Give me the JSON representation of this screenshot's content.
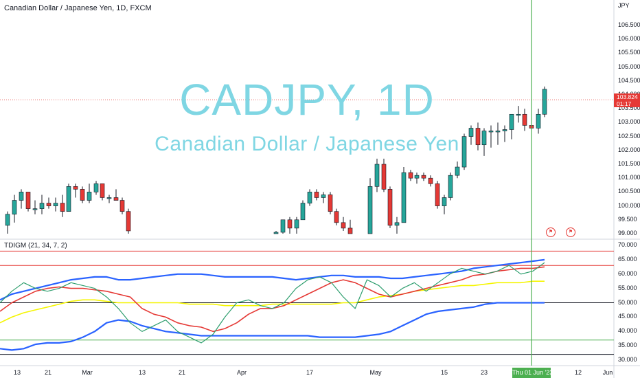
{
  "header": {
    "symbol_title": "Canadian Dollar / Japanese Yen, 1D, FXCM",
    "indicator_title": "TDIGM (21, 34, 7, 2)"
  },
  "watermark": {
    "ticker": "CADJPY, 1D",
    "name": "Canadian Dollar / Japanese Yen"
  },
  "price_scale": {
    "currency": "JPY",
    "labels": [
      "106.500",
      "106.000",
      "105.500",
      "105.000",
      "104.500",
      "104.000",
      "103.500",
      "103.000",
      "102.500",
      "102.000",
      "101.500",
      "101.000",
      "100.500",
      "100.000",
      "99.500",
      "99.000"
    ],
    "last_price": "103.824",
    "countdown": "01:17"
  },
  "indicator_scale": {
    "labels": [
      "70.000",
      "65.000",
      "60.000",
      "55.000",
      "50.000",
      "45.000",
      "40.000",
      "35.000",
      "30.000"
    ]
  },
  "time_axis": {
    "labels": [
      "13",
      "21",
      "Mar",
      "13",
      "21",
      "Apr",
      "17",
      "May",
      "15",
      "23",
      "12",
      "Jun"
    ],
    "crosshair_date": "Thu 01 Jun '23"
  },
  "events": [
    {
      "icon": "event-flag-icon"
    },
    {
      "icon": "event-flag-icon"
    }
  ],
  "colors": {
    "bull": "#26a69a",
    "bear": "#e53935",
    "crosshair": "#4caf50",
    "watermark": "#7fd6e3",
    "upper_band": "#2962ff",
    "signal": "#e53935",
    "rsi_line": "#2e9e6e",
    "middle_band": "#f5f500"
  },
  "chart_data": [
    {
      "type": "candlestick",
      "title": "Canadian Dollar / Japanese Yen, 1D, FXCM",
      "ylim": [
        99.0,
        106.7
      ],
      "candles": [
        {
          "x": "Feb 09",
          "o": 99.3,
          "h": 99.8,
          "l": 99.0,
          "c": 99.7
        },
        {
          "x": "Feb 10",
          "o": 99.7,
          "h": 100.4,
          "l": 99.4,
          "c": 100.2
        },
        {
          "x": "Feb 13",
          "o": 100.2,
          "h": 100.6,
          "l": 99.9,
          "c": 100.5
        },
        {
          "x": "Feb 14",
          "o": 100.5,
          "h": 100.5,
          "l": 99.8,
          "c": 99.9
        },
        {
          "x": "Feb 15",
          "o": 99.9,
          "h": 100.2,
          "l": 99.7,
          "c": 99.9
        },
        {
          "x": "Feb 16",
          "o": 99.9,
          "h": 100.4,
          "l": 99.7,
          "c": 100.1
        },
        {
          "x": "Feb 17",
          "o": 100.1,
          "h": 100.3,
          "l": 99.9,
          "c": 100.0
        },
        {
          "x": "Feb 20",
          "o": 100.0,
          "h": 100.3,
          "l": 99.8,
          "c": 100.1
        },
        {
          "x": "Feb 21",
          "o": 100.1,
          "h": 100.4,
          "l": 99.6,
          "c": 99.8
        },
        {
          "x": "Feb 22",
          "o": 99.8,
          "h": 100.8,
          "l": 99.8,
          "c": 100.7
        },
        {
          "x": "Feb 23",
          "o": 100.7,
          "h": 100.8,
          "l": 100.3,
          "c": 100.6
        },
        {
          "x": "Feb 24",
          "o": 100.6,
          "h": 100.7,
          "l": 100.1,
          "c": 100.2
        },
        {
          "x": "Feb 27",
          "o": 100.2,
          "h": 100.8,
          "l": 100.1,
          "c": 100.5
        },
        {
          "x": "Feb 28",
          "o": 100.5,
          "h": 100.9,
          "l": 100.4,
          "c": 100.8
        },
        {
          "x": "Mar 01",
          "o": 100.8,
          "h": 100.8,
          "l": 100.2,
          "c": 100.3
        },
        {
          "x": "Mar 02",
          "o": 100.3,
          "h": 100.4,
          "l": 100.1,
          "c": 100.3
        },
        {
          "x": "Mar 03",
          "o": 100.3,
          "h": 100.6,
          "l": 100.2,
          "c": 100.2
        },
        {
          "x": "Mar 06",
          "o": 100.2,
          "h": 100.3,
          "l": 99.7,
          "c": 99.8
        },
        {
          "x": "Mar 07",
          "o": 99.8,
          "h": 99.9,
          "l": 99.0,
          "c": 99.1
        },
        {
          "x": "Mar 29",
          "o": 99.0,
          "h": 99.1,
          "l": 99.0,
          "c": 99.05
        },
        {
          "x": "Mar 30",
          "o": 99.05,
          "h": 99.5,
          "l": 99.0,
          "c": 99.5
        },
        {
          "x": "Mar 31",
          "o": 99.5,
          "h": 99.6,
          "l": 99.0,
          "c": 99.2
        },
        {
          "x": "Apr 03",
          "o": 99.2,
          "h": 99.6,
          "l": 99.0,
          "c": 99.5
        },
        {
          "x": "Apr 04",
          "o": 99.5,
          "h": 100.2,
          "l": 99.5,
          "c": 100.1
        },
        {
          "x": "Apr 05",
          "o": 100.1,
          "h": 100.6,
          "l": 100.0,
          "c": 100.5
        },
        {
          "x": "Apr 06",
          "o": 100.5,
          "h": 100.6,
          "l": 100.2,
          "c": 100.3
        },
        {
          "x": "Apr 07",
          "o": 100.3,
          "h": 100.5,
          "l": 100.1,
          "c": 100.4
        },
        {
          "x": "Apr 10",
          "o": 100.4,
          "h": 100.5,
          "l": 99.7,
          "c": 99.8
        },
        {
          "x": "Apr 11",
          "o": 99.8,
          "h": 99.9,
          "l": 99.3,
          "c": 99.4
        },
        {
          "x": "Apr 12",
          "o": 99.4,
          "h": 99.6,
          "l": 99.1,
          "c": 99.2
        },
        {
          "x": "Apr 13",
          "o": 99.2,
          "h": 99.5,
          "l": 99.0,
          "c": 99.0
        },
        {
          "x": "Apr 27",
          "o": 99.0,
          "h": 101.0,
          "l": 99.0,
          "c": 100.7
        },
        {
          "x": "Apr 28",
          "o": 100.7,
          "h": 101.7,
          "l": 100.5,
          "c": 101.5
        },
        {
          "x": "May 01",
          "o": 101.5,
          "h": 101.7,
          "l": 100.5,
          "c": 100.6
        },
        {
          "x": "May 02",
          "o": 100.6,
          "h": 100.7,
          "l": 99.2,
          "c": 99.3
        },
        {
          "x": "May 03",
          "o": 99.3,
          "h": 99.6,
          "l": 99.0,
          "c": 99.4
        },
        {
          "x": "May 04",
          "o": 99.4,
          "h": 101.4,
          "l": 99.4,
          "c": 101.2
        },
        {
          "x": "May 05",
          "o": 101.2,
          "h": 101.3,
          "l": 100.9,
          "c": 101.0
        },
        {
          "x": "May 08",
          "o": 101.0,
          "h": 101.2,
          "l": 100.8,
          "c": 101.1
        },
        {
          "x": "May 09",
          "o": 101.1,
          "h": 101.2,
          "l": 100.9,
          "c": 101.0
        },
        {
          "x": "May 10",
          "o": 101.0,
          "h": 101.1,
          "l": 100.7,
          "c": 100.8
        },
        {
          "x": "May 11",
          "o": 100.8,
          "h": 100.9,
          "l": 99.9,
          "c": 100.0
        },
        {
          "x": "May 12",
          "o": 100.0,
          "h": 100.4,
          "l": 99.7,
          "c": 100.3
        },
        {
          "x": "May 15",
          "o": 100.3,
          "h": 101.2,
          "l": 100.2,
          "c": 101.1
        },
        {
          "x": "May 16",
          "o": 101.1,
          "h": 101.6,
          "l": 101.0,
          "c": 101.4
        },
        {
          "x": "May 17",
          "o": 101.4,
          "h": 102.6,
          "l": 101.3,
          "c": 102.5
        },
        {
          "x": "May 18",
          "o": 102.5,
          "h": 102.9,
          "l": 102.2,
          "c": 102.8
        },
        {
          "x": "May 19",
          "o": 102.8,
          "h": 103.0,
          "l": 102.0,
          "c": 102.2
        },
        {
          "x": "May 22",
          "o": 102.2,
          "h": 102.8,
          "l": 101.8,
          "c": 102.7
        },
        {
          "x": "May 23",
          "o": 102.7,
          "h": 102.9,
          "l": 102.1,
          "c": 102.7
        },
        {
          "x": "May 24",
          "o": 102.7,
          "h": 103.0,
          "l": 102.2,
          "c": 102.7
        },
        {
          "x": "May 25",
          "o": 102.7,
          "h": 102.9,
          "l": 102.3,
          "c": 102.75
        },
        {
          "x": "May 26",
          "o": 102.75,
          "h": 103.3,
          "l": 102.4,
          "c": 103.3
        },
        {
          "x": "May 29",
          "o": 103.3,
          "h": 103.6,
          "l": 103.0,
          "c": 103.3
        },
        {
          "x": "May 30",
          "o": 103.3,
          "h": 103.5,
          "l": 102.7,
          "c": 102.9
        },
        {
          "x": "May 31",
          "o": 102.9,
          "h": 103.1,
          "l": 102.2,
          "c": 102.8
        },
        {
          "x": "Jun 01",
          "o": 102.8,
          "h": 103.5,
          "l": 102.6,
          "c": 103.3
        },
        {
          "x": "Jun 02",
          "o": 103.3,
          "h": 104.3,
          "l": 103.2,
          "c": 104.2
        },
        {
          "x": "Jun 05",
          "o": 104.2,
          "h": 104.6,
          "l": 103.6,
          "c": 103.824
        }
      ]
    },
    {
      "type": "line",
      "title": "TDIGM (21, 34, 7, 2)",
      "ylim": [
        29,
        72
      ],
      "hlines": [
        {
          "value": 68,
          "color": "#e53935"
        },
        {
          "value": 63,
          "color": "#e53935"
        },
        {
          "value": 50,
          "color": "#131722"
        },
        {
          "value": 37,
          "color": "#4caf50"
        },
        {
          "value": 32,
          "color": "#131722"
        }
      ],
      "x": [
        0,
        1,
        2,
        3,
        4,
        5,
        6,
        7,
        8,
        9,
        10,
        11,
        12,
        13,
        14,
        15,
        16,
        17,
        18,
        19,
        20,
        21,
        22,
        23,
        24,
        25,
        26,
        27,
        28,
        29,
        30,
        31,
        32,
        33,
        34,
        35,
        36,
        37,
        38,
        39,
        40,
        41,
        42,
        43,
        44,
        45,
        46
      ],
      "series": [
        {
          "key": "upper",
          "color": "#2962ff",
          "values": [
            51,
            53,
            54,
            55,
            56,
            57,
            58,
            58.5,
            59,
            59,
            58,
            58,
            58.5,
            59,
            59.5,
            60,
            60,
            60,
            59.5,
            59,
            59,
            59,
            59,
            59,
            58.5,
            58,
            58.5,
            59,
            59.5,
            59.5,
            59,
            59,
            59,
            58.5,
            58.5,
            59,
            59.5,
            60,
            60.5,
            61,
            62,
            62.5,
            63,
            63.5,
            64,
            64.5,
            65
          ]
        },
        {
          "key": "middle",
          "color": "#f5f500",
          "values": [
            43,
            45,
            46.5,
            47.5,
            48.5,
            49.5,
            50.5,
            51,
            51,
            50.5,
            50,
            50,
            50,
            50,
            50,
            50,
            49.5,
            49.5,
            49.5,
            49,
            49,
            49,
            49,
            49.5,
            49.5,
            49.5,
            49.5,
            49.5,
            49.5,
            50,
            50,
            51,
            52,
            52.5,
            53,
            54,
            54.5,
            55,
            55.5,
            56,
            56,
            56.5,
            57,
            57,
            57,
            57.5,
            57.5
          ]
        },
        {
          "key": "lower",
          "color": "#2962ff",
          "values": [
            34,
            33.5,
            34,
            35.5,
            36,
            36,
            36.5,
            38,
            40,
            43,
            44,
            43.5,
            42,
            41,
            40,
            39.5,
            39,
            38.5,
            38.5,
            38.5,
            38.5,
            38.5,
            38.5,
            38.5,
            38.5,
            38.5,
            38.5,
            38,
            38,
            38,
            38,
            38.5,
            39,
            40,
            42,
            44,
            46,
            47,
            47.5,
            48,
            48.5,
            49.5,
            50,
            50,
            50,
            50,
            50
          ]
        },
        {
          "key": "signal",
          "color": "#e53935",
          "values": [
            47,
            50,
            52,
            54,
            55,
            55.5,
            55,
            55,
            54.5,
            54,
            53,
            52,
            48,
            46,
            45,
            43,
            42,
            41.5,
            40,
            41,
            43,
            46,
            48,
            48,
            49,
            51,
            53,
            55,
            57,
            58,
            57,
            55,
            53,
            52,
            53,
            54,
            55,
            56,
            57,
            58,
            59.5,
            60,
            61,
            61.5,
            62,
            62,
            62.5
          ]
        },
        {
          "key": "rsi",
          "color": "#2e9e6e",
          "values": [
            50,
            54,
            57,
            55,
            54,
            55,
            57,
            56,
            55,
            52,
            48,
            43,
            40,
            42,
            44,
            40,
            38,
            36,
            39,
            45,
            50,
            51,
            49,
            48,
            50,
            55,
            58,
            59,
            57,
            52,
            48,
            58,
            56,
            52,
            55,
            57,
            54,
            57,
            60,
            62,
            61,
            60,
            61,
            63,
            60,
            61,
            64
          ]
        }
      ]
    }
  ]
}
